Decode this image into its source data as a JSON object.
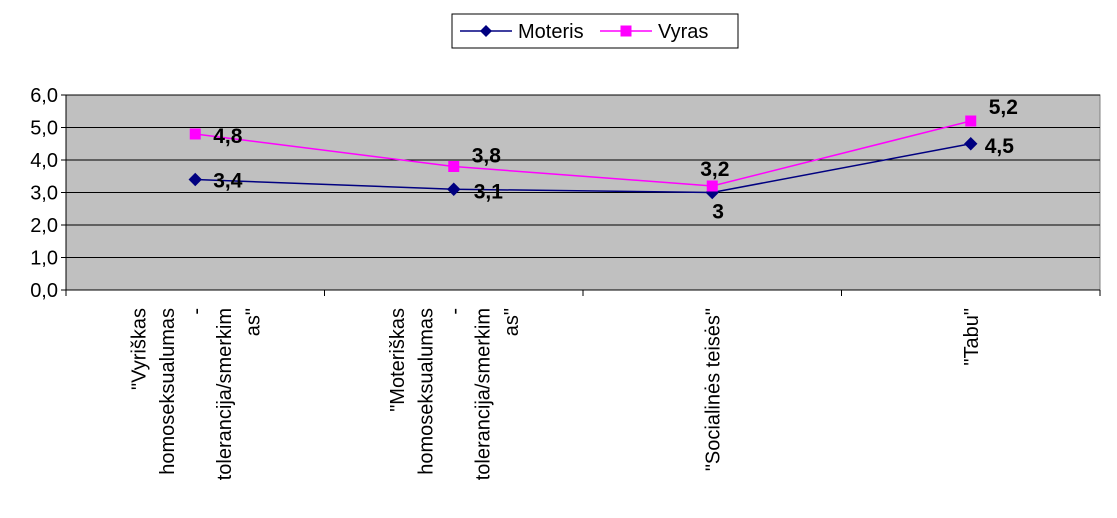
{
  "chart_data": {
    "type": "line",
    "categories": [
      [
        "\"Vyriškas",
        "homoseksualumas",
        "-",
        "tolerancija/smerkim",
        "as\""
      ],
      [
        "\"Moteriškas",
        "homoseksualumas",
        "-",
        "tolerancija/smerkim",
        "as\""
      ],
      [
        "\"Socialinės teisės\""
      ],
      [
        "\"Tabu\""
      ]
    ],
    "series": [
      {
        "name": "Moteris",
        "values": [
          3.4,
          3.1,
          3.0,
          4.5
        ],
        "labels": [
          "3,4",
          "3,1",
          "3",
          "4,5"
        ],
        "color": "#000080",
        "marker": "diamond"
      },
      {
        "name": "Vyras",
        "values": [
          4.8,
          3.8,
          3.2,
          5.2
        ],
        "labels": [
          "4,8",
          "3,8",
          "3,2",
          "5,2"
        ],
        "color": "#ff00ff",
        "marker": "square"
      }
    ],
    "ylim": [
      0,
      6
    ],
    "y_ticks": [
      "0,0",
      "1,0",
      "2,0",
      "3,0",
      "4,0",
      "5,0",
      "6,0"
    ],
    "plot_background": "#c0c0c0",
    "grid": true,
    "legend_position": "top-center"
  }
}
